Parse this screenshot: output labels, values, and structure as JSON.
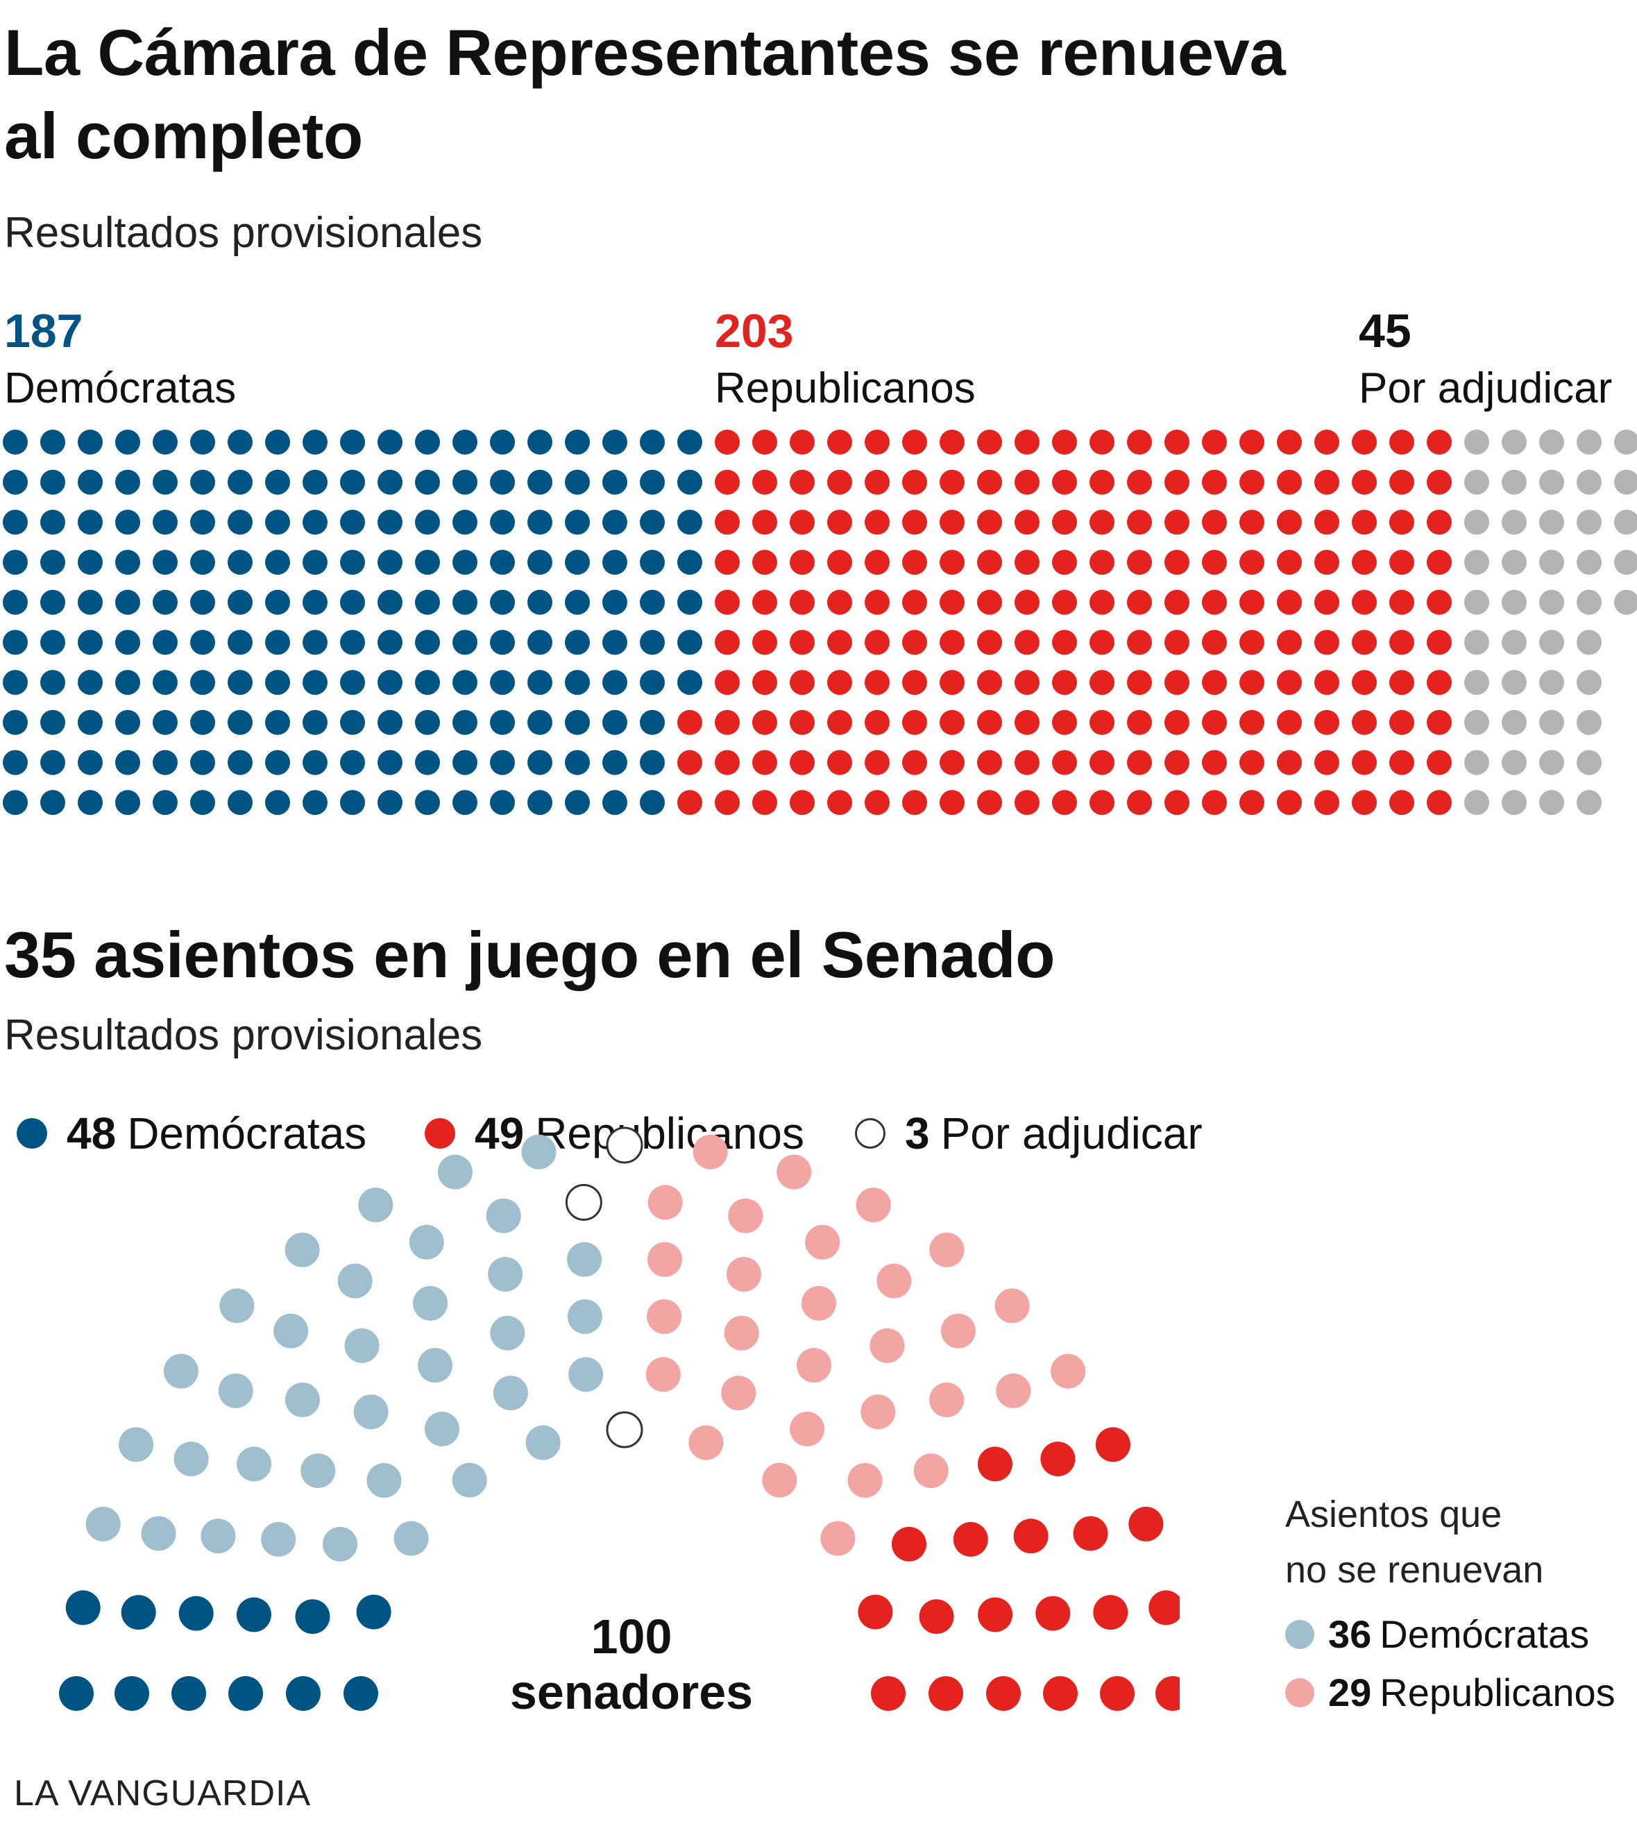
{
  "chart_data": [
    {
      "type": "waffle",
      "title": "La Cámara de Representantes se renueva al completo",
      "subtitle": "Resultados provisionales",
      "rows": 10,
      "series": [
        {
          "name": "Demócratas",
          "value": 187,
          "color": "#005483"
        },
        {
          "name": "Republicanos",
          "value": 203,
          "color": "#e4231e"
        },
        {
          "name": "Por adjudicar",
          "value": 45,
          "color": "#b3b3b3"
        }
      ]
    },
    {
      "type": "parliament",
      "title": "35 asientos en juego en el Senado",
      "subtitle": "Resultados provisionales",
      "total_label_number": "100",
      "total_label_text": "senadores",
      "in_play": [
        {
          "name": "Demócratas",
          "value": 48,
          "count_in_play": 12,
          "color": "#005483"
        },
        {
          "name": "Republicanos",
          "value": 49,
          "count_in_play": 20,
          "color": "#e4231e"
        },
        {
          "name": "Por adjudicar",
          "value": 3,
          "color": "#ffffff"
        }
      ],
      "not_renewed_title_line1": "Asientos que",
      "not_renewed_title_line2": "no se renuevan",
      "not_renewed": [
        {
          "name": "Demócratas",
          "value": 36,
          "color": "#9fbfcf"
        },
        {
          "name": "Republicanos",
          "value": 29,
          "color": "#f2a5a3"
        }
      ]
    }
  ],
  "house": {
    "title_line1": "La Cámara de Representantes se renueva",
    "title_line2": "al completo",
    "subtitle": "Resultados provisionales",
    "dem_num": "187",
    "dem_label": "Demócratas",
    "rep_num": "203",
    "rep_label": "Republicanos",
    "pend_num": "45",
    "pend_label": "Por adjudicar"
  },
  "senate": {
    "title": "35 asientos en juego en el Senado",
    "subtitle": "Resultados provisionales",
    "legend": [
      {
        "num": "48",
        "label": "Demócratas"
      },
      {
        "num": "49",
        "label": "Republicanos"
      },
      {
        "num": "3",
        "label": "Por adjudicar"
      }
    ],
    "center_num": "100",
    "center_text": "senadores",
    "side_title1": "Asientos que",
    "side_title2": "no se renuevan",
    "side_legend": [
      {
        "num": "36",
        "label": "Demócratas"
      },
      {
        "num": "29",
        "label": "Republicanos"
      }
    ]
  },
  "brand": "LA VANGUARDIA"
}
